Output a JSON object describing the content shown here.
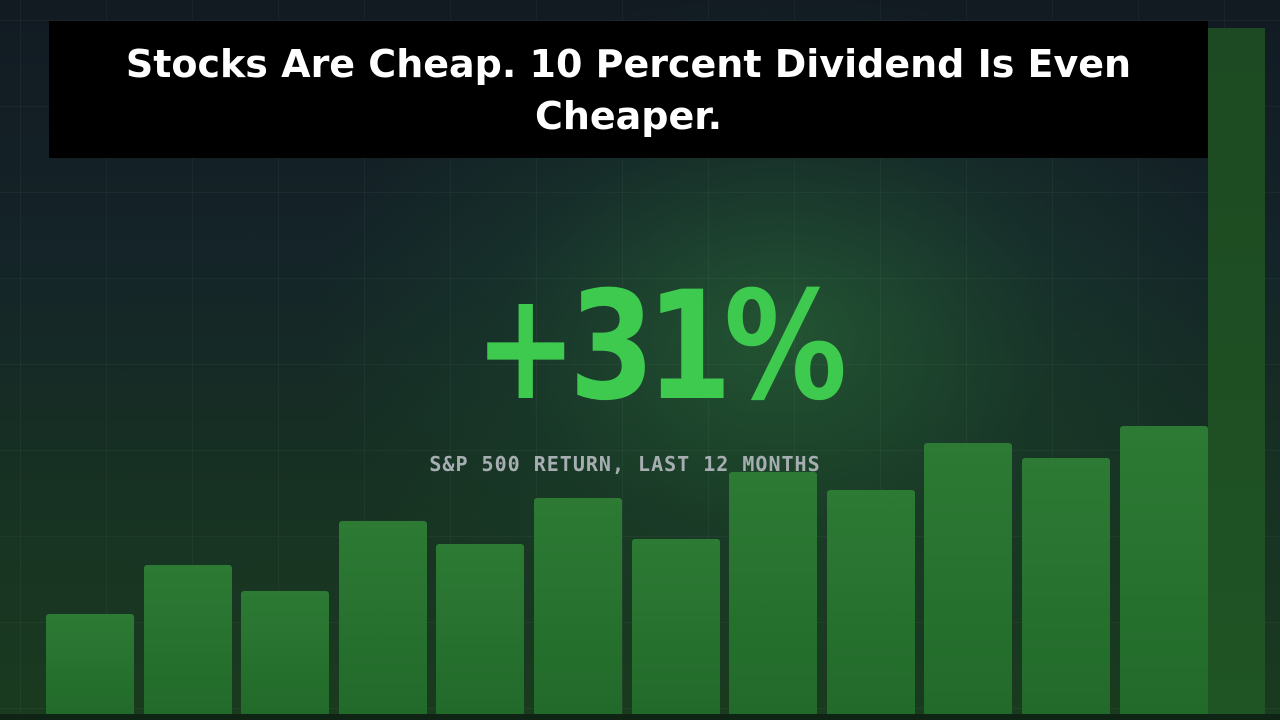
{
  "title": "Stocks Are Cheap. 10 Percent Dividend Is Even Cheaper.",
  "title_lines": [
    "Stocks Are Cheap. 10 Percent Dividend Is Even",
    "Cheaper."
  ],
  "headline_value": "+31%",
  "caption": "S&P 500 RETURN, LAST 12 MONTHS",
  "bar_levels": [
    0.35,
    0.52,
    0.43,
    0.67,
    0.59,
    0.75,
    0.61,
    0.84,
    0.78,
    0.94,
    0.89,
    1.0
  ],
  "colors": {
    "accent_green": "#3ec94f",
    "bar_green": "#2c7a34",
    "title_bg": "#000000",
    "title_text": "#ffffff",
    "caption_text": "#a7aeb1"
  }
}
